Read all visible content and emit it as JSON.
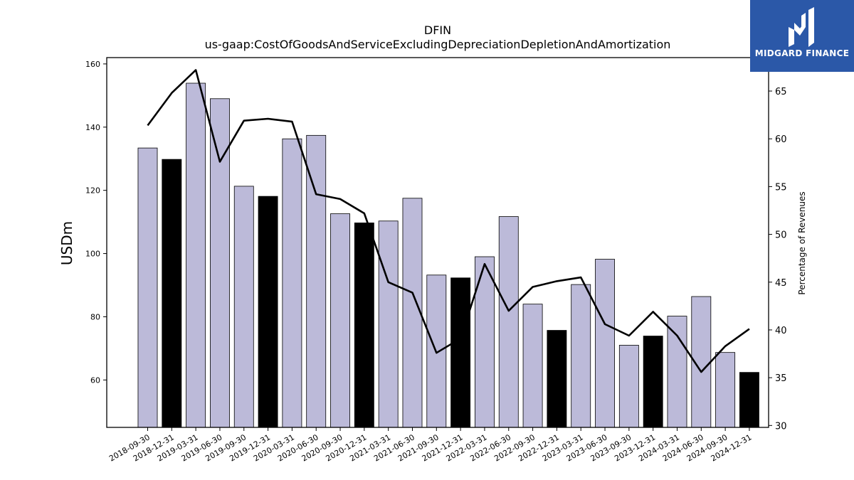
{
  "chart_data": {
    "type": "bar",
    "title": "DFIN",
    "subtitle": "us-gaap:CostOfGoodsAndServiceExcludingDepreciationDepletionAndAmortization",
    "ylabel": "USDm",
    "ylabel_right": "Percentage of Revenues",
    "ylim": [
      45,
      162
    ],
    "ylim_right": [
      29.8,
      68.5
    ],
    "yticks": [
      60,
      80,
      100,
      120,
      140,
      160
    ],
    "yticks_right": [
      30,
      35,
      40,
      45,
      50,
      55,
      60,
      65
    ],
    "categories": [
      "2018-09-30",
      "2018-12-31",
      "2019-03-31",
      "2019-06-30",
      "2019-09-30",
      "2019-12-31",
      "2020-03-31",
      "2020-06-30",
      "2020-09-30",
      "2020-12-31",
      "2021-03-31",
      "2021-06-30",
      "2021-09-30",
      "2021-12-31",
      "2022-03-31",
      "2022-06-30",
      "2022-09-30",
      "2022-12-31",
      "2023-03-31",
      "2023-06-30",
      "2023-09-30",
      "2023-12-31",
      "2024-03-31",
      "2024-06-30",
      "2024-09-30",
      "2024-12-31"
    ],
    "series": [
      {
        "type": "bar",
        "values": [
          133.4,
          129.8,
          153.9,
          149.0,
          121.3,
          118.1,
          136.3,
          137.4,
          112.6,
          109.7,
          110.3,
          117.5,
          93.2,
          92.3,
          99.0,
          111.7,
          84.0,
          75.7,
          90.2,
          98.2,
          71.0,
          73.9,
          80.2,
          86.4,
          68.7,
          62.4
        ],
        "highlight_every_quarter_end": "12-31",
        "color": "#bcbad9",
        "highlight_color": "#000000"
      },
      {
        "type": "line",
        "axis": "right",
        "values": [
          61.4,
          64.8,
          67.2,
          57.6,
          61.9,
          62.1,
          61.8,
          54.2,
          53.7,
          52.2,
          45.0,
          43.9,
          37.6,
          39.1,
          46.9,
          42.0,
          44.5,
          45.1,
          45.5,
          40.6,
          39.4,
          41.9,
          39.4,
          35.6,
          38.3,
          40.1
        ],
        "color": "#000000"
      }
    ],
    "grid": false
  },
  "logo": {
    "text": "MIDGARD FINANCE",
    "bg_color": "#2b58a8"
  }
}
